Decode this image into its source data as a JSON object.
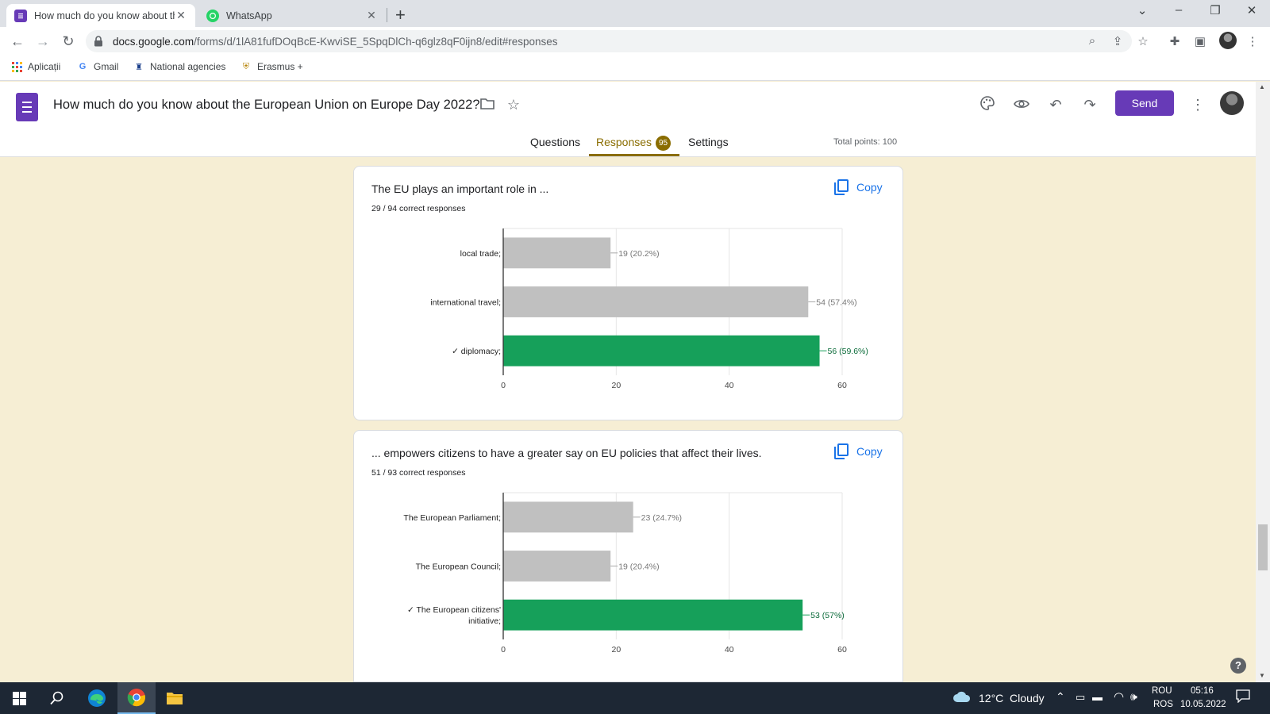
{
  "browser": {
    "tabs": [
      {
        "title": "How much do you know about th",
        "active": true,
        "icon": "google-forms-icon"
      },
      {
        "title": "WhatsApp",
        "active": false,
        "icon": "whatsapp-icon"
      }
    ],
    "url_host": "docs.google.com",
    "url_path": "/forms/d/1lA81fufDOqBcE-KwviSE_5SpqDlCh-q6glz8qF0ijn8/edit#responses",
    "bookmarks": [
      {
        "label": "Aplicații",
        "icon": "apps-grid-icon"
      },
      {
        "label": "Gmail",
        "icon": "google-icon"
      },
      {
        "label": "National agencies",
        "icon": "agency-icon"
      },
      {
        "label": "Erasmus +",
        "icon": "crest-icon"
      }
    ]
  },
  "form": {
    "title": "How much do you know about the European Union on Europe Day 2022?",
    "send_label": "Send",
    "tabs": [
      {
        "label": "Questions"
      },
      {
        "label": "Responses",
        "badge": "95"
      },
      {
        "label": "Settings"
      }
    ],
    "total_points": "Total points: 100",
    "accent": "#673ab7",
    "tab_accent": "#8a6d00"
  },
  "questions": [
    {
      "title": "The EU plays an important role in ...",
      "subtitle": "29 / 94 correct responses",
      "copy_label": "Copy"
    },
    {
      "title": "... empowers citizens to have a greater say on EU policies that affect their lives.",
      "subtitle": "51 / 93 correct responses",
      "copy_label": "Copy"
    }
  ],
  "chart_data": [
    {
      "type": "bar",
      "orientation": "horizontal",
      "categories": [
        "local trade;",
        "international travel;",
        "✓ diplomacy;"
      ],
      "values": [
        19,
        54,
        56
      ],
      "labels": [
        "19 (20.2%)",
        "54 (57.4%)",
        "56 (59.6%)"
      ],
      "correct": [
        false,
        false,
        true
      ],
      "xlim": [
        0,
        60
      ],
      "xticks": [
        0,
        20,
        40,
        60
      ],
      "grid": true,
      "colors": {
        "incorrect": "#c0c0c0",
        "correct": "#16a05a"
      }
    },
    {
      "type": "bar",
      "orientation": "horizontal",
      "categories": [
        "The European Parliament;",
        "The European Council;",
        "✓ The European citizens' initiative;"
      ],
      "values": [
        23,
        19,
        53
      ],
      "labels": [
        "23 (24.7%)",
        "19 (20.4%)",
        "53 (57%)"
      ],
      "correct": [
        false,
        false,
        true
      ],
      "xlim": [
        0,
        60
      ],
      "xticks": [
        0,
        20,
        40,
        60
      ],
      "grid": true,
      "colors": {
        "incorrect": "#c0c0c0",
        "correct": "#16a05a"
      }
    }
  ],
  "taskbar": {
    "weather": "12°C  Cloudy",
    "lang_top": "ROU",
    "lang_bottom": "ROS",
    "time": "05:16",
    "date": "10.05.2022"
  }
}
